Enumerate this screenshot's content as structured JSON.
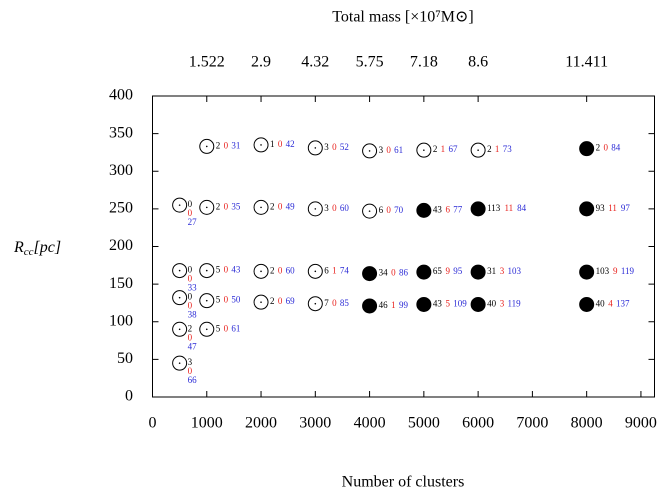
{
  "chart_data": {
    "type": "scatter",
    "title": "Total mass [×10⁷M⊙]",
    "xlabel": "Number of clusters",
    "ylabel": {
      "main": "R",
      "sub": "cc",
      "tail": "[pc]"
    },
    "xlim": [
      0,
      9250
    ],
    "ylim": [
      0,
      400
    ],
    "xticks": [
      0,
      1000,
      2000,
      3000,
      4000,
      5000,
      6000,
      7000,
      8000,
      9000
    ],
    "yticks": [
      0,
      50,
      100,
      150,
      200,
      250,
      300,
      350,
      400
    ],
    "x2ticks": [
      {
        "value": 1000,
        "label": "1.522"
      },
      {
        "value": 2000,
        "label": "2.9"
      },
      {
        "value": 3000,
        "label": "4.32"
      },
      {
        "value": 4000,
        "label": "5.75"
      },
      {
        "value": 5000,
        "label": "7.18"
      },
      {
        "value": 6000,
        "label": "8.6"
      },
      {
        "value": 8000,
        "label": "11.411"
      }
    ],
    "label_colors": [
      "#000000",
      "#e8201c",
      "#2b2bd6"
    ],
    "points": [
      {
        "x": 1000,
        "y": 333,
        "filled": false,
        "labels": [
          2,
          0,
          31
        ]
      },
      {
        "x": 2000,
        "y": 335,
        "filled": false,
        "labels": [
          1,
          0,
          42
        ]
      },
      {
        "x": 3000,
        "y": 331,
        "filled": false,
        "labels": [
          3,
          0,
          52
        ]
      },
      {
        "x": 4000,
        "y": 327,
        "filled": false,
        "labels": [
          3,
          0,
          61
        ]
      },
      {
        "x": 5000,
        "y": 328,
        "filled": false,
        "labels": [
          2,
          1,
          67
        ]
      },
      {
        "x": 6000,
        "y": 328,
        "filled": false,
        "labels": [
          2,
          1,
          73
        ]
      },
      {
        "x": 8000,
        "y": 330,
        "filled": true,
        "labels": [
          2,
          0,
          84
        ]
      },
      {
        "x": 500,
        "y": 255,
        "filled": false,
        "labels": [
          0,
          0,
          27
        ]
      },
      {
        "x": 1000,
        "y": 252,
        "filled": false,
        "labels": [
          2,
          0,
          35
        ]
      },
      {
        "x": 2000,
        "y": 252,
        "filled": false,
        "labels": [
          2,
          0,
          49
        ]
      },
      {
        "x": 3000,
        "y": 250,
        "filled": false,
        "labels": [
          3,
          0,
          60
        ]
      },
      {
        "x": 4000,
        "y": 247,
        "filled": false,
        "labels": [
          6,
          0,
          70
        ]
      },
      {
        "x": 5000,
        "y": 248,
        "filled": true,
        "labels": [
          43,
          6,
          77
        ]
      },
      {
        "x": 6000,
        "y": 250,
        "filled": true,
        "labels": [
          113,
          11,
          84
        ]
      },
      {
        "x": 8000,
        "y": 250,
        "filled": true,
        "labels": [
          93,
          11,
          97
        ]
      },
      {
        "x": 500,
        "y": 168,
        "filled": false,
        "labels": [
          0,
          0,
          33
        ]
      },
      {
        "x": 1000,
        "y": 168,
        "filled": false,
        "labels": [
          5,
          0,
          43
        ]
      },
      {
        "x": 2000,
        "y": 167,
        "filled": false,
        "labels": [
          2,
          0,
          60
        ]
      },
      {
        "x": 3000,
        "y": 167,
        "filled": false,
        "labels": [
          6,
          1,
          74
        ]
      },
      {
        "x": 4000,
        "y": 164,
        "filled": true,
        "labels": [
          34,
          0,
          86
        ]
      },
      {
        "x": 5000,
        "y": 166,
        "filled": true,
        "labels": [
          65,
          9,
          95
        ]
      },
      {
        "x": 6000,
        "y": 166,
        "filled": true,
        "labels": [
          31,
          3,
          103
        ]
      },
      {
        "x": 8000,
        "y": 166,
        "filled": true,
        "labels": [
          103,
          9,
          119
        ]
      },
      {
        "x": 500,
        "y": 132,
        "filled": false,
        "labels": [
          0,
          0,
          38
        ]
      },
      {
        "x": 1000,
        "y": 128,
        "filled": false,
        "labels": [
          5,
          0,
          50
        ]
      },
      {
        "x": 2000,
        "y": 126,
        "filled": false,
        "labels": [
          2,
          0,
          69
        ]
      },
      {
        "x": 3000,
        "y": 124,
        "filled": false,
        "labels": [
          7,
          0,
          85
        ]
      },
      {
        "x": 4000,
        "y": 121,
        "filled": true,
        "labels": [
          46,
          1,
          99
        ]
      },
      {
        "x": 5000,
        "y": 123,
        "filled": true,
        "labels": [
          43,
          5,
          109
        ]
      },
      {
        "x": 6000,
        "y": 123,
        "filled": true,
        "labels": [
          40,
          3,
          119
        ]
      },
      {
        "x": 8000,
        "y": 123,
        "filled": true,
        "labels": [
          40,
          4,
          137
        ]
      },
      {
        "x": 500,
        "y": 90,
        "filled": false,
        "labels": [
          2,
          0,
          47
        ]
      },
      {
        "x": 1000,
        "y": 90,
        "filled": false,
        "labels": [
          5,
          0,
          61
        ]
      },
      {
        "x": 500,
        "y": 45,
        "filled": false,
        "labels": [
          3,
          0,
          66
        ]
      }
    ]
  }
}
